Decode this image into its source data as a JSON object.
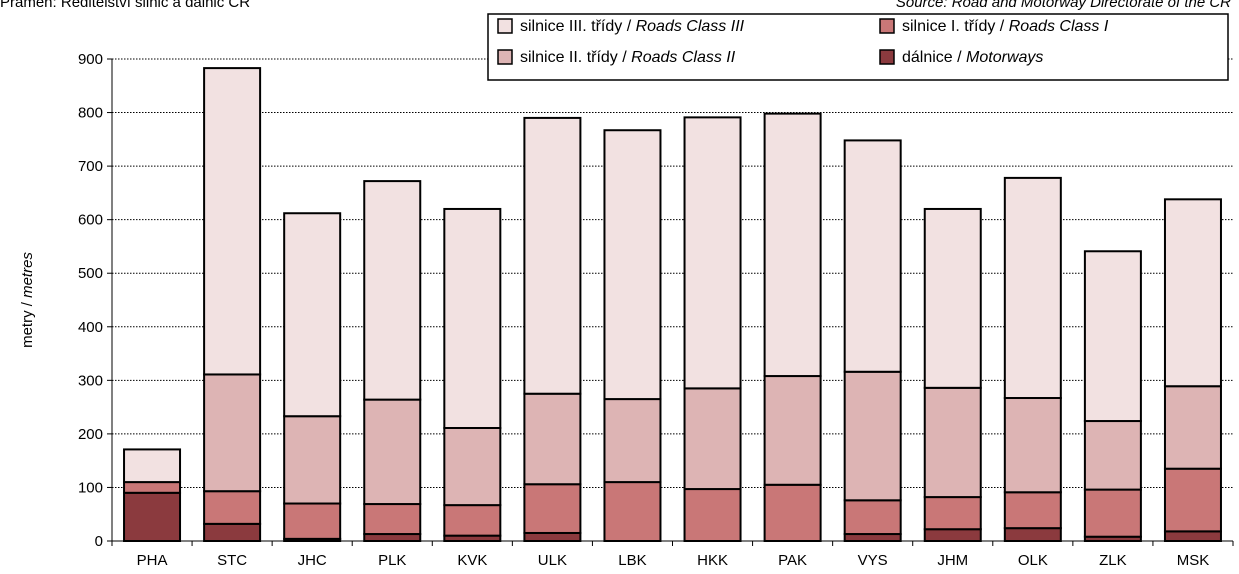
{
  "source": {
    "left": "Pramen: Ředitelství silnic a dálnic ČR",
    "right": "Source: Road and Motorway Directorate of the CR"
  },
  "chart_data": {
    "type": "bar",
    "stacked": true,
    "ylabel_cz": "metry / ",
    "ylabel_en": "metres",
    "ylim": [
      0,
      900
    ],
    "yticks": [
      0,
      100,
      200,
      300,
      400,
      500,
      600,
      700,
      800,
      900
    ],
    "grid": true,
    "legend_position": "top-right",
    "categories": [
      "PHA",
      "STC",
      "JHC",
      "PLK",
      "KVK",
      "ULK",
      "LBK",
      "HKK",
      "PAK",
      "VYS",
      "JHM",
      "OLK",
      "ZLK",
      "MSK"
    ],
    "series": [
      {
        "name_cz": "dálnice / ",
        "name_en": "Motorways",
        "color": "#8b3a3e",
        "values": [
          90,
          32,
          4,
          13,
          10,
          15,
          0,
          0,
          0,
          13,
          22,
          24,
          8,
          18
        ]
      },
      {
        "name_cz": "silnice I. třídy / ",
        "name_en": "Roads Class I",
        "color": "#c97777",
        "values": [
          20,
          61,
          66,
          56,
          57,
          91,
          110,
          97,
          105,
          63,
          60,
          67,
          88,
          117
        ]
      },
      {
        "name_cz": "silnice II. třídy / ",
        "name_en": "Roads Class II",
        "color": "#ddb4b4",
        "values": [
          0,
          218,
          163,
          195,
          144,
          169,
          155,
          188,
          203,
          240,
          204,
          176,
          128,
          154
        ]
      },
      {
        "name_cz": "silnice III. třídy / ",
        "name_en": "Roads Class III",
        "color": "#f2e1e1",
        "values": [
          61,
          572,
          379,
          408,
          409,
          515,
          502,
          506,
          490,
          432,
          334,
          411,
          317,
          349
        ]
      }
    ]
  }
}
